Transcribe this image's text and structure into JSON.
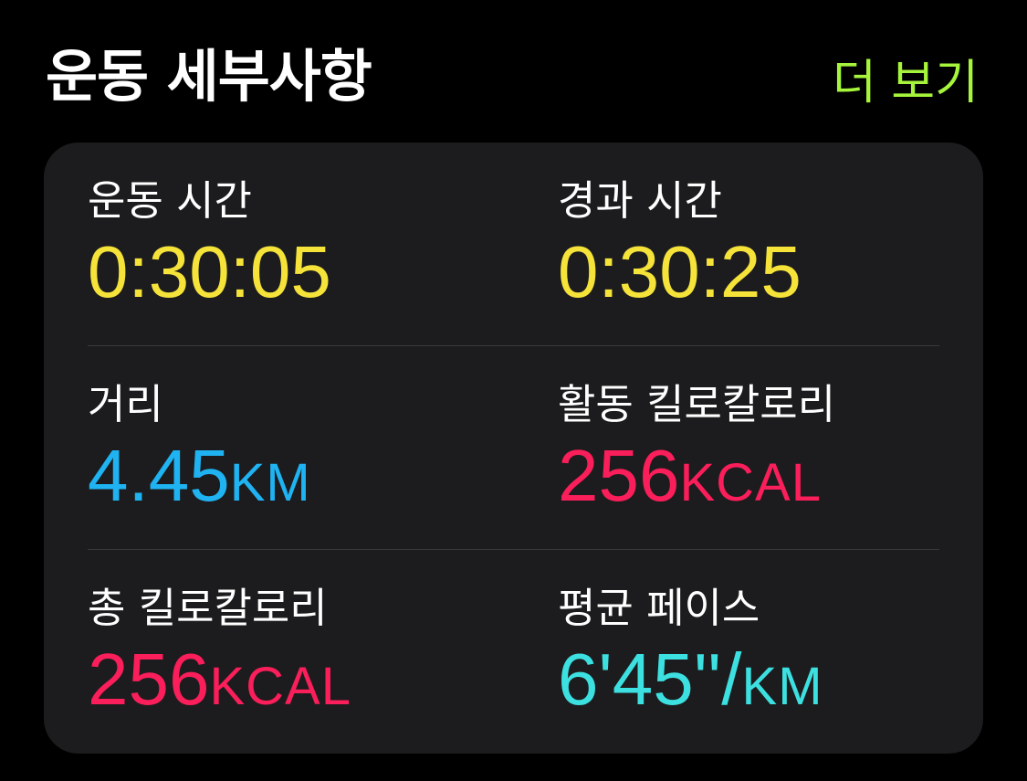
{
  "header": {
    "title": "운동 세부사항",
    "more_label": "더 보기"
  },
  "metrics": [
    {
      "label": "운동 시간",
      "value": "0:30:05",
      "unit": "",
      "color": "#f5e33a"
    },
    {
      "label": "경과 시간",
      "value": "0:30:25",
      "unit": "",
      "color": "#f5e33a"
    },
    {
      "label": "거리",
      "value": "4.45",
      "unit": "KM",
      "color": "#1fb3f2"
    },
    {
      "label": "활동 킬로칼로리",
      "value": "256",
      "unit": "KCAL",
      "color": "#fa1e5a"
    },
    {
      "label": "총 킬로칼로리",
      "value": "256",
      "unit": "KCAL",
      "color": "#fa1e5a"
    },
    {
      "label": "평균 페이스",
      "value": "6'45''/",
      "unit": "KM",
      "color": "#3de0e0"
    }
  ],
  "colors": {
    "background": "#000000",
    "card": "#1c1c1e",
    "accent_green": "#a6f43b",
    "divider": "#3a3a3c"
  }
}
